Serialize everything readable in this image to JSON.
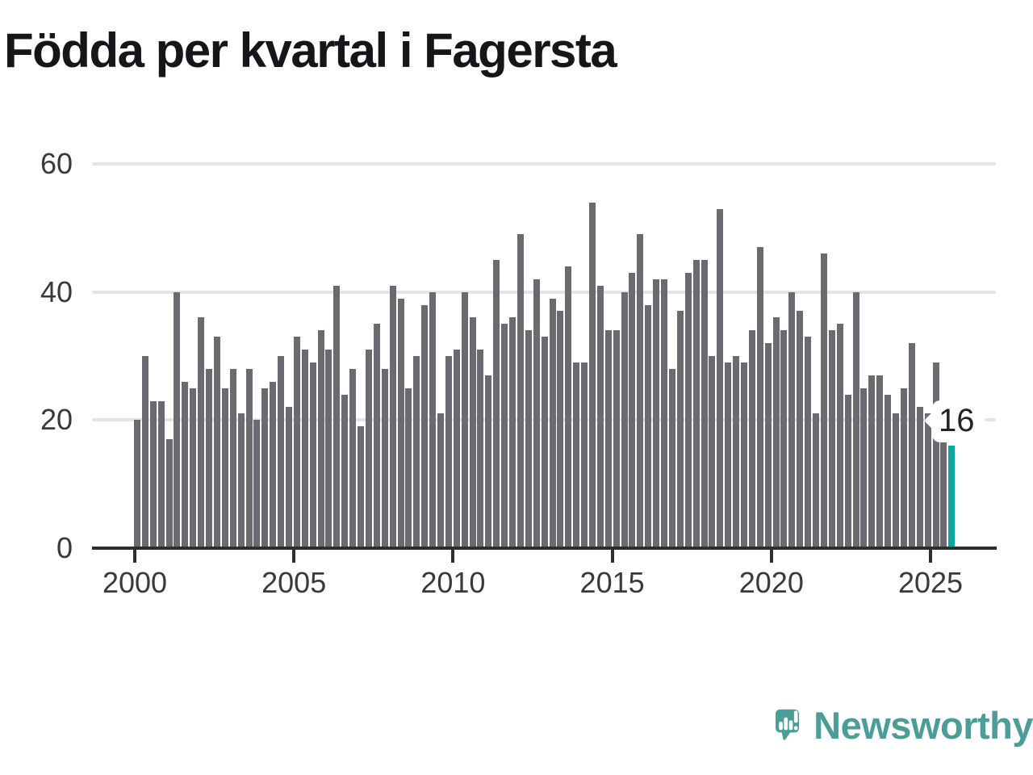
{
  "title": "Födda per kvartal i Fagersta",
  "chart_data": {
    "type": "bar",
    "title": "Födda per kvartal i Fagersta",
    "x_start_quarter": "2000 Q1",
    "x_end_quarter": "2025 Q3",
    "values": [
      20,
      30,
      23,
      23,
      17,
      40,
      26,
      25,
      36,
      28,
      33,
      25,
      28,
      21,
      28,
      20,
      25,
      26,
      30,
      22,
      33,
      31,
      29,
      34,
      31,
      41,
      24,
      28,
      19,
      31,
      35,
      28,
      41,
      39,
      25,
      30,
      38,
      40,
      21,
      30,
      31,
      40,
      36,
      31,
      27,
      45,
      35,
      36,
      49,
      34,
      42,
      33,
      39,
      37,
      44,
      29,
      29,
      54,
      41,
      34,
      34,
      40,
      43,
      49,
      38,
      42,
      42,
      28,
      37,
      43,
      45,
      45,
      30,
      53,
      29,
      30,
      29,
      34,
      47,
      32,
      36,
      34,
      40,
      37,
      33,
      21,
      46,
      34,
      35,
      24,
      40,
      25,
      27,
      27,
      24,
      21,
      25,
      32,
      22,
      21,
      29,
      18,
      16
    ],
    "x_tick_labels": [
      "2000",
      "2005",
      "2010",
      "2015",
      "2020",
      "2025"
    ],
    "y_ticks": [
      0,
      20,
      40,
      60
    ],
    "ylim": [
      0,
      60
    ],
    "grid": "horizontal",
    "legend": "none",
    "bar_color": "#6a6a71",
    "gridline_color": "#e4e4e4",
    "axis_color": "#2e2e2e",
    "highlight": {
      "quarter": "2025 Q3",
      "index": 102,
      "value": 16,
      "label": "16",
      "color": "#0ba7a0"
    }
  },
  "footer": {
    "brand": "Newsworthy",
    "brand_color": "#4b9e98"
  }
}
